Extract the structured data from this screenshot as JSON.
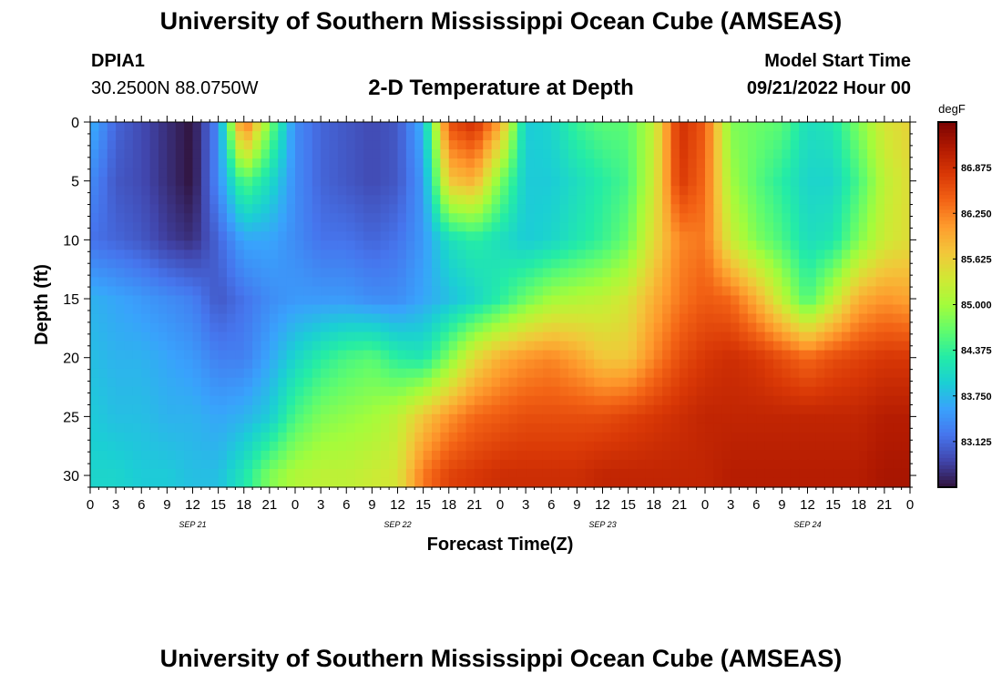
{
  "header": {
    "title": "University of Southern Mississippi Ocean Cube (AMSEAS)",
    "station_id": "DPIA1",
    "station_coords": "30.2500N  88.0750W",
    "plot_title": "2-D Temperature at Depth",
    "model_start_label": "Model Start Time",
    "model_start_value": "09/21/2022 Hour 00"
  },
  "footer": {
    "title": "University of Southern Mississippi Ocean Cube (AMSEAS)"
  },
  "colors": {
    "colormap": [
      "#30123b",
      "#4145ab",
      "#4675ed",
      "#39a2fc",
      "#1bcfd4",
      "#24eca6",
      "#61fc6c",
      "#a4fc3b",
      "#d1e834",
      "#f3c63a",
      "#fe9b2d",
      "#f36315",
      "#d93806",
      "#b11901",
      "#7a0403"
    ]
  },
  "chart_data": {
    "type": "heatmap",
    "title": "2-D Temperature at Depth",
    "xlabel": "Forecast Time(Z)",
    "ylabel": "Depth (ft)",
    "x_tick_labels": [
      "0",
      "3",
      "6",
      "9",
      "12",
      "15",
      "18",
      "21",
      "0",
      "3",
      "6",
      "9",
      "12",
      "15",
      "18",
      "21",
      "0",
      "3",
      "6",
      "9",
      "12",
      "15",
      "18",
      "21",
      "0",
      "3",
      "6",
      "9",
      "12",
      "15",
      "18",
      "21",
      "0"
    ],
    "date_labels": [
      "SEP 21",
      "SEP 22",
      "SEP 23",
      "SEP 24"
    ],
    "xlim": [
      0,
      96
    ],
    "ylim": [
      0,
      31
    ],
    "y_ticks": [
      0,
      5,
      10,
      15,
      20,
      25,
      30
    ],
    "colorbar": {
      "unit": "degF",
      "ticks": [
        "86.875",
        "86.250",
        "85.625",
        "85.000",
        "84.375",
        "83.750",
        "83.125"
      ],
      "range": [
        82.5,
        87.5
      ]
    },
    "x_hours": [
      0,
      3,
      6,
      9,
      12,
      15,
      18,
      21,
      24,
      27,
      30,
      33,
      36,
      39,
      42,
      45,
      48,
      51,
      54,
      57,
      60,
      63,
      66,
      69,
      72,
      75,
      78,
      81,
      84,
      87,
      90,
      93,
      96
    ],
    "depths_ft": [
      0,
      5,
      10,
      15,
      20,
      25,
      30
    ],
    "values": [
      [
        83.7,
        83.1,
        82.9,
        82.7,
        82.5,
        83.4,
        86.5,
        84.8,
        83.4,
        83.1,
        83.0,
        82.9,
        83.0,
        83.7,
        86.6,
        86.9,
        86.0,
        83.9,
        84.0,
        84.4,
        84.6,
        84.6,
        85.2,
        86.9,
        86.5,
        84.8,
        84.7,
        84.6,
        84.1,
        84.2,
        84.8,
        85.4,
        85.6
      ],
      [
        83.4,
        83.0,
        82.9,
        82.7,
        82.5,
        83.4,
        84.6,
        84.1,
        83.4,
        83.1,
        83.0,
        82.9,
        83.0,
        83.5,
        85.7,
        85.9,
        84.8,
        83.9,
        83.9,
        84.1,
        84.3,
        84.5,
        85.3,
        86.8,
        86.4,
        85.0,
        84.6,
        84.3,
        84.0,
        84.0,
        84.5,
        85.2,
        85.5
      ],
      [
        83.2,
        83.1,
        83.0,
        82.8,
        82.7,
        83.1,
        83.6,
        83.6,
        83.4,
        83.2,
        83.2,
        83.1,
        83.2,
        83.5,
        84.1,
        84.3,
        84.1,
        83.9,
        84.0,
        84.2,
        84.4,
        84.7,
        85.5,
        86.2,
        86.3,
        85.3,
        84.8,
        84.5,
        84.1,
        84.2,
        84.8,
        85.3,
        85.5
      ],
      [
        83.7,
        83.6,
        83.5,
        83.4,
        83.3,
        83.0,
        83.2,
        83.4,
        83.5,
        83.5,
        83.5,
        83.4,
        83.4,
        83.6,
        83.8,
        84.0,
        84.3,
        84.7,
        85.0,
        85.1,
        85.2,
        85.4,
        85.9,
        86.3,
        86.5,
        86.4,
        85.9,
        85.2,
        84.5,
        85.2,
        85.9,
        86.1,
        86.0
      ],
      [
        83.8,
        83.7,
        83.7,
        83.6,
        83.5,
        83.3,
        83.3,
        83.6,
        84.0,
        84.3,
        84.5,
        84.6,
        84.3,
        84.2,
        84.8,
        85.5,
        85.9,
        86.1,
        86.2,
        86.0,
        85.7,
        85.7,
        86.2,
        86.6,
        86.8,
        86.9,
        86.8,
        86.6,
        86.4,
        86.6,
        86.7,
        86.8,
        86.8
      ],
      [
        83.9,
        83.8,
        83.8,
        83.7,
        83.7,
        83.6,
        83.7,
        83.9,
        84.5,
        84.8,
        84.9,
        85.0,
        85.2,
        85.7,
        86.1,
        86.4,
        86.5,
        86.6,
        86.6,
        86.6,
        86.6,
        86.7,
        86.8,
        86.9,
        87.0,
        87.0,
        87.0,
        87.0,
        87.0,
        87.0,
        87.0,
        87.1,
        87.1
      ],
      [
        84.0,
        84.0,
        83.9,
        83.9,
        83.8,
        83.8,
        84.2,
        84.8,
        85.1,
        85.2,
        85.2,
        85.3,
        85.4,
        86.3,
        86.7,
        86.8,
        86.9,
        86.9,
        86.9,
        86.9,
        87.0,
        87.0,
        87.0,
        87.0,
        87.0,
        87.1,
        87.1,
        87.1,
        87.1,
        87.1,
        87.1,
        87.2,
        87.2
      ]
    ]
  }
}
